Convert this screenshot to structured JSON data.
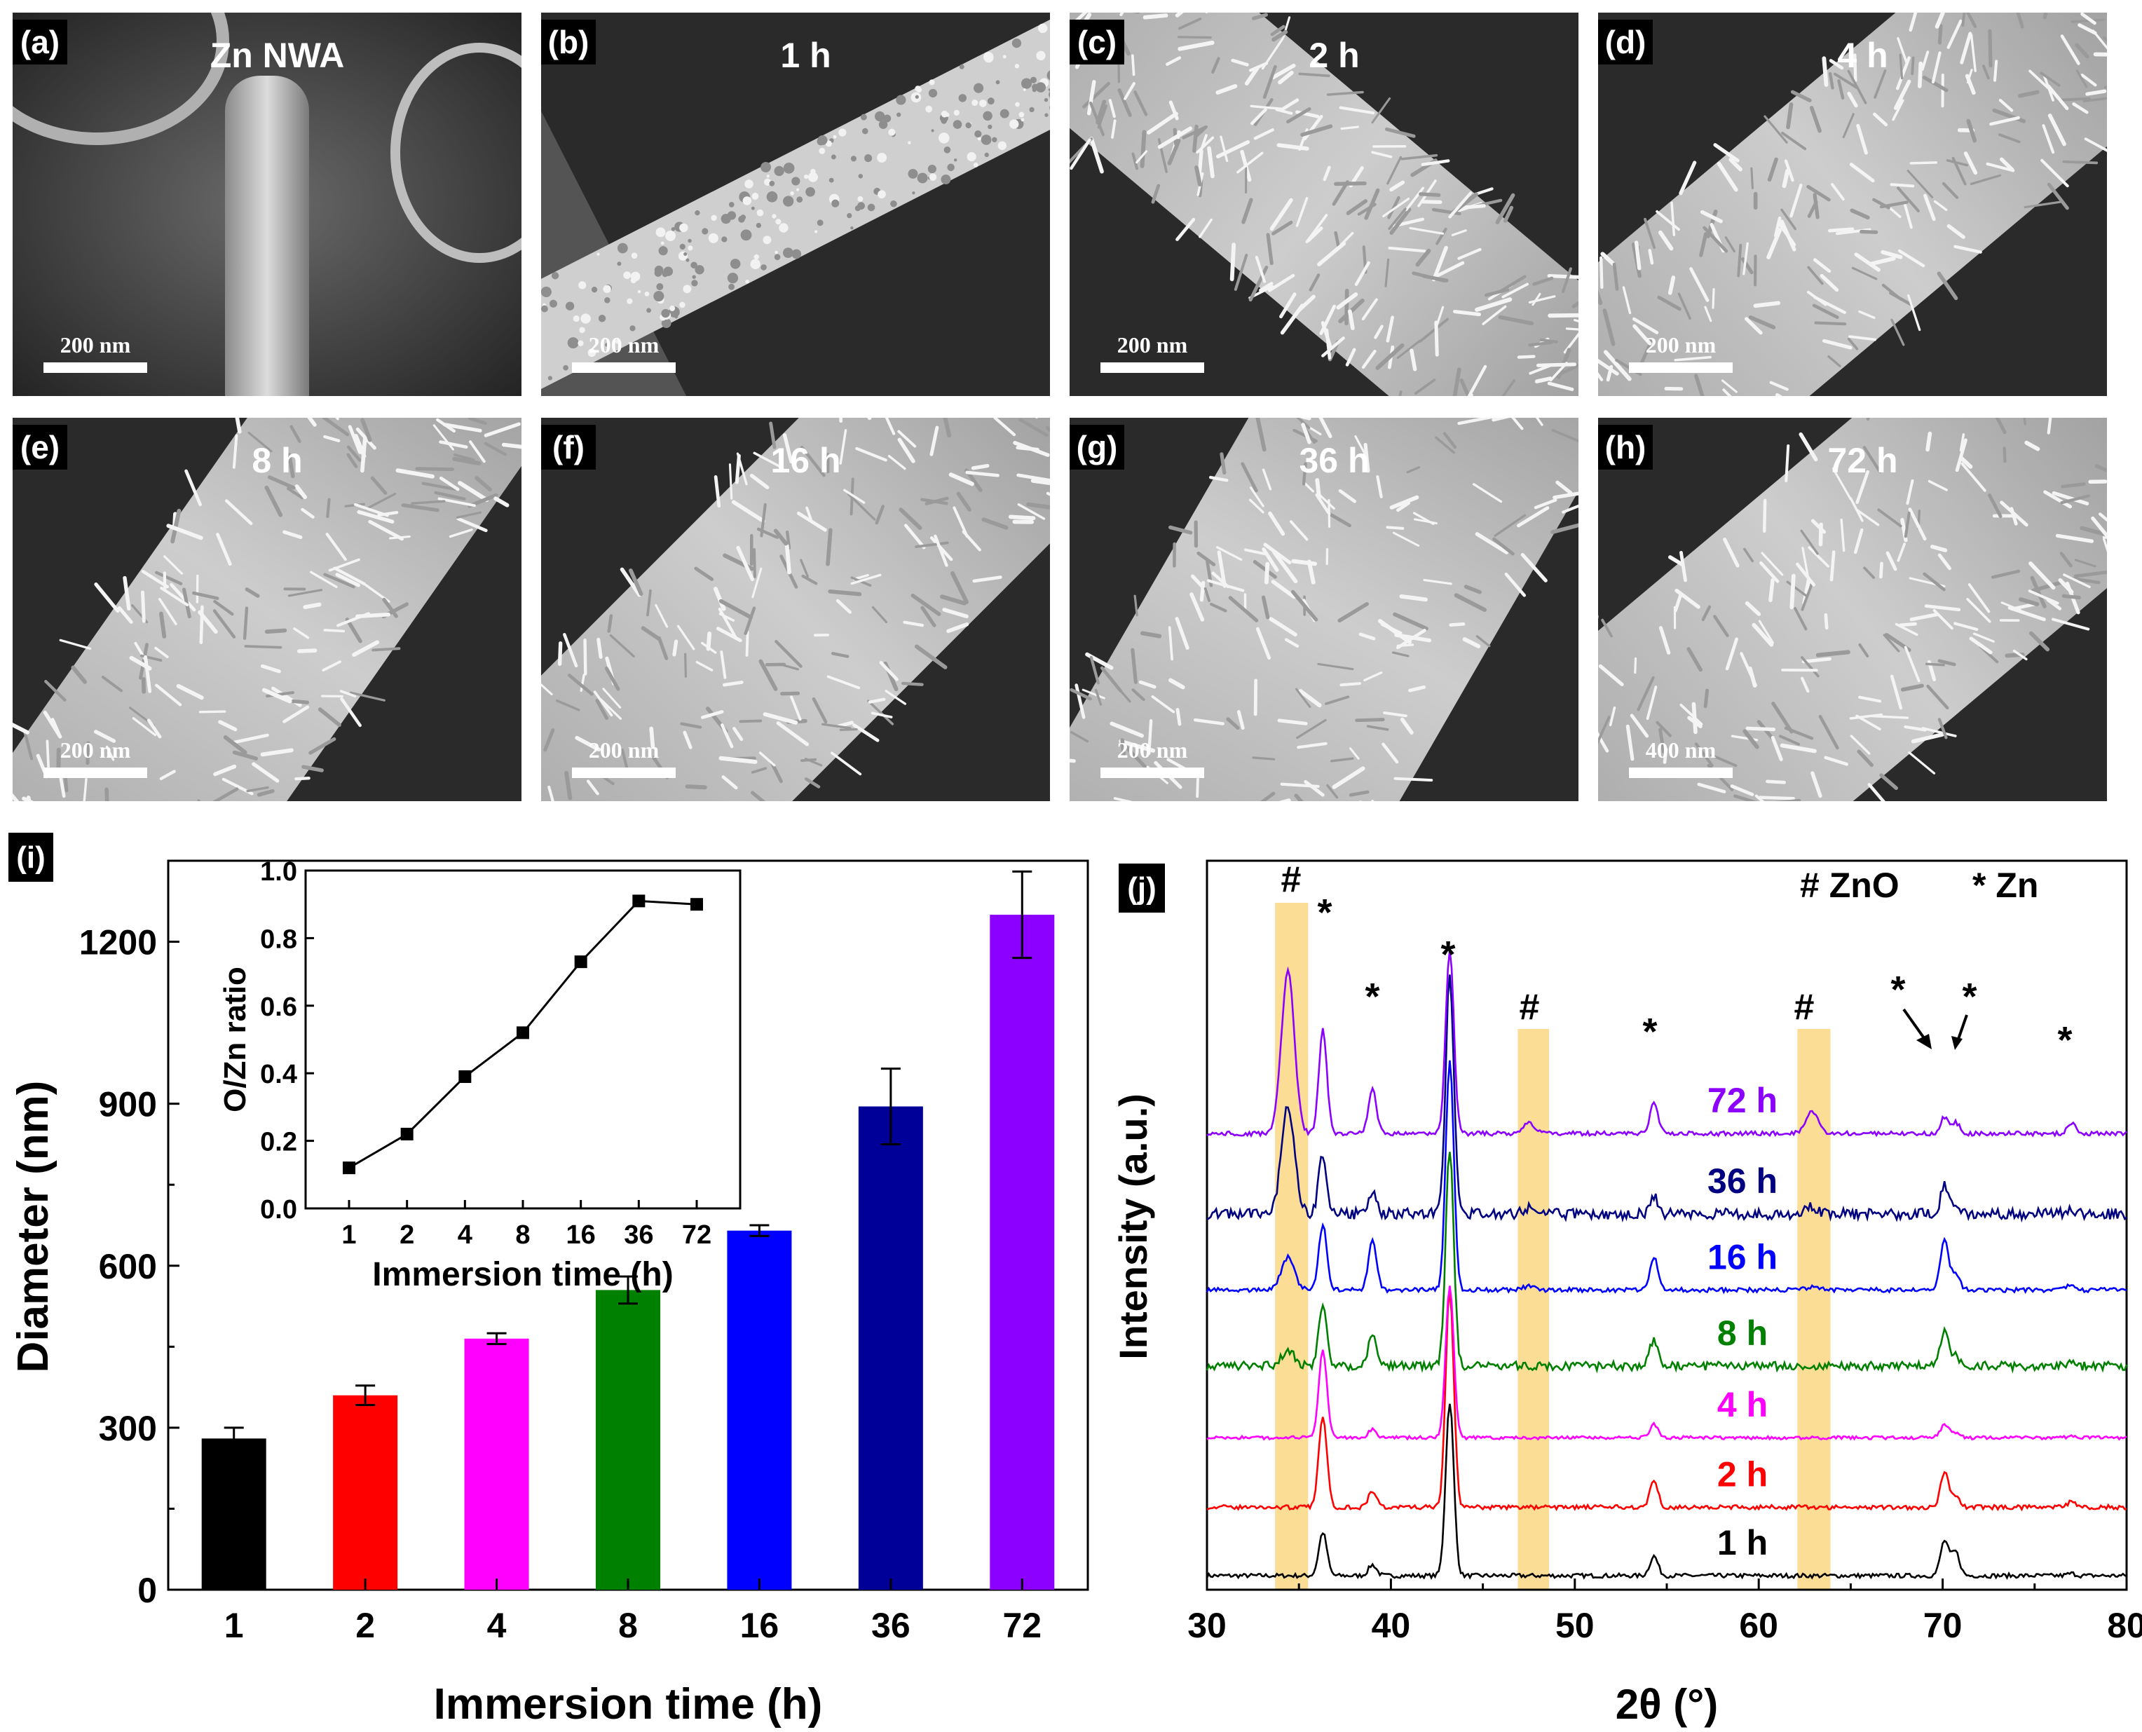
{
  "sem_panels": [
    {
      "label": "(a)",
      "title": "Zn NWA",
      "scale": "200 nm",
      "kind": "smooth"
    },
    {
      "label": "(b)",
      "title": "1 h",
      "scale": "200 nm",
      "kind": "grainy"
    },
    {
      "label": "(c)",
      "title": "2 h",
      "scale": "200 nm",
      "kind": "fuzzy"
    },
    {
      "label": "(d)",
      "title": "4 h",
      "scale": "200 nm",
      "kind": "fuzzy"
    },
    {
      "label": "(e)",
      "title": "8 h",
      "scale": "200 nm",
      "kind": "fuzzy"
    },
    {
      "label": "(f)",
      "title": "16 h",
      "scale": "200 nm",
      "kind": "fuzzy"
    },
    {
      "label": "(g)",
      "title": "36 h",
      "scale": "200 nm",
      "kind": "fuzzy"
    },
    {
      "label": "(h)",
      "title": "72 h",
      "scale": "400 nm",
      "kind": "fuzzy"
    }
  ],
  "chart_data": [
    {
      "id": "i",
      "panel_label": "(i)",
      "type": "bar",
      "categories": [
        "1",
        "2",
        "4",
        "8",
        "16",
        "36",
        "72"
      ],
      "values": [
        280,
        360,
        465,
        555,
        665,
        895,
        1250
      ],
      "errors": [
        20,
        18,
        10,
        25,
        10,
        70,
        80
      ],
      "colors": [
        "#000000",
        "#ff0000",
        "#ff00ff",
        "#008000",
        "#0000ff",
        "#000099",
        "#8b00ff"
      ],
      "xlabel": "Immersion time (h)",
      "ylabel": "Diameter (nm)",
      "ylim": [
        0,
        1350
      ],
      "yticks": [
        0,
        300,
        600,
        900,
        1200
      ],
      "inset": {
        "type": "line",
        "categories": [
          "1",
          "2",
          "4",
          "8",
          "16",
          "36",
          "72"
        ],
        "values": [
          0.12,
          0.22,
          0.39,
          0.52,
          0.73,
          0.91,
          0.9
        ],
        "xlabel": "Immersion time (h)",
        "ylabel": "O/Zn ratio",
        "ylim": [
          0,
          1.0
        ],
        "yticks": [
          "0.0",
          "0.2",
          "0.4",
          "0.6",
          "0.8",
          "1.0"
        ]
      }
    },
    {
      "id": "j",
      "panel_label": "(j)",
      "type": "line",
      "xlabel": "2θ (°)",
      "ylabel": "Intensity (a.u.)",
      "xlim": [
        30,
        80
      ],
      "xticks": [
        30,
        40,
        50,
        60,
        70,
        80
      ],
      "legend": [
        "# ZnO",
        "* Zn"
      ],
      "highlight_bands_2theta": [
        [
          33.7,
          35.5
        ],
        [
          46.9,
          48.6
        ],
        [
          62.1,
          63.9
        ]
      ],
      "zn_peaks": [
        {
          "pos": 36.3,
          "h": [
            0.4,
            0.85,
            0.8,
            0.55,
            0.6,
            0.55,
            0.95
          ]
        },
        {
          "pos": 39.0,
          "h": [
            0.1,
            0.15,
            0.08,
            0.3,
            0.45,
            0.2,
            0.4
          ]
        },
        {
          "pos": 43.2,
          "h": [
            1.6,
            2.0,
            1.4,
            2.0,
            2.1,
            2.2,
            1.7
          ]
        },
        {
          "pos": 54.3,
          "h": [
            0.18,
            0.25,
            0.12,
            0.25,
            0.3,
            0.18,
            0.28
          ]
        },
        {
          "pos": 70.1,
          "h": [
            0.32,
            0.32,
            0.12,
            0.32,
            0.45,
            0.25,
            0.15
          ]
        },
        {
          "pos": 70.7,
          "h": [
            0.22,
            0.1,
            0.05,
            0.1,
            0.15,
            0.1,
            0.1
          ]
        },
        {
          "pos": 77.0,
          "h": [
            0.02,
            0.05,
            0.02,
            0.03,
            0.05,
            0.05,
            0.1
          ]
        }
      ],
      "zno_peaks": [
        {
          "pos": 34.4,
          "h": [
            0.0,
            0.0,
            0.0,
            0.15,
            0.3,
            1.0,
            1.5
          ]
        },
        {
          "pos": 47.5,
          "h": [
            0.0,
            0.0,
            0.0,
            0.0,
            0.03,
            0.06,
            0.1
          ]
        },
        {
          "pos": 62.9,
          "h": [
            0.0,
            0.0,
            0.0,
            0.0,
            0.03,
            0.06,
            0.2
          ]
        }
      ],
      "series": [
        {
          "name": "1 h",
          "color": "#000000",
          "offset": 0.0,
          "noise": 0.02
        },
        {
          "name": "2 h",
          "color": "#ff0000",
          "offset": 0.63,
          "noise": 0.02
        },
        {
          "name": "4 h",
          "color": "#ff00ff",
          "offset": 1.27,
          "noise": 0.015
        },
        {
          "name": "8 h",
          "color": "#008000",
          "offset": 1.93,
          "noise": 0.04
        },
        {
          "name": "16 h",
          "color": "#0000ff",
          "offset": 2.63,
          "noise": 0.02
        },
        {
          "name": "36 h",
          "color": "#000080",
          "offset": 3.33,
          "noise": 0.05
        },
        {
          "name": "72 h",
          "color": "#8b00ff",
          "offset": 4.07,
          "noise": 0.02
        }
      ],
      "annotations": [
        "#",
        "*",
        "*",
        "*",
        "#",
        "*",
        "#",
        "*",
        "*",
        "*"
      ]
    }
  ]
}
